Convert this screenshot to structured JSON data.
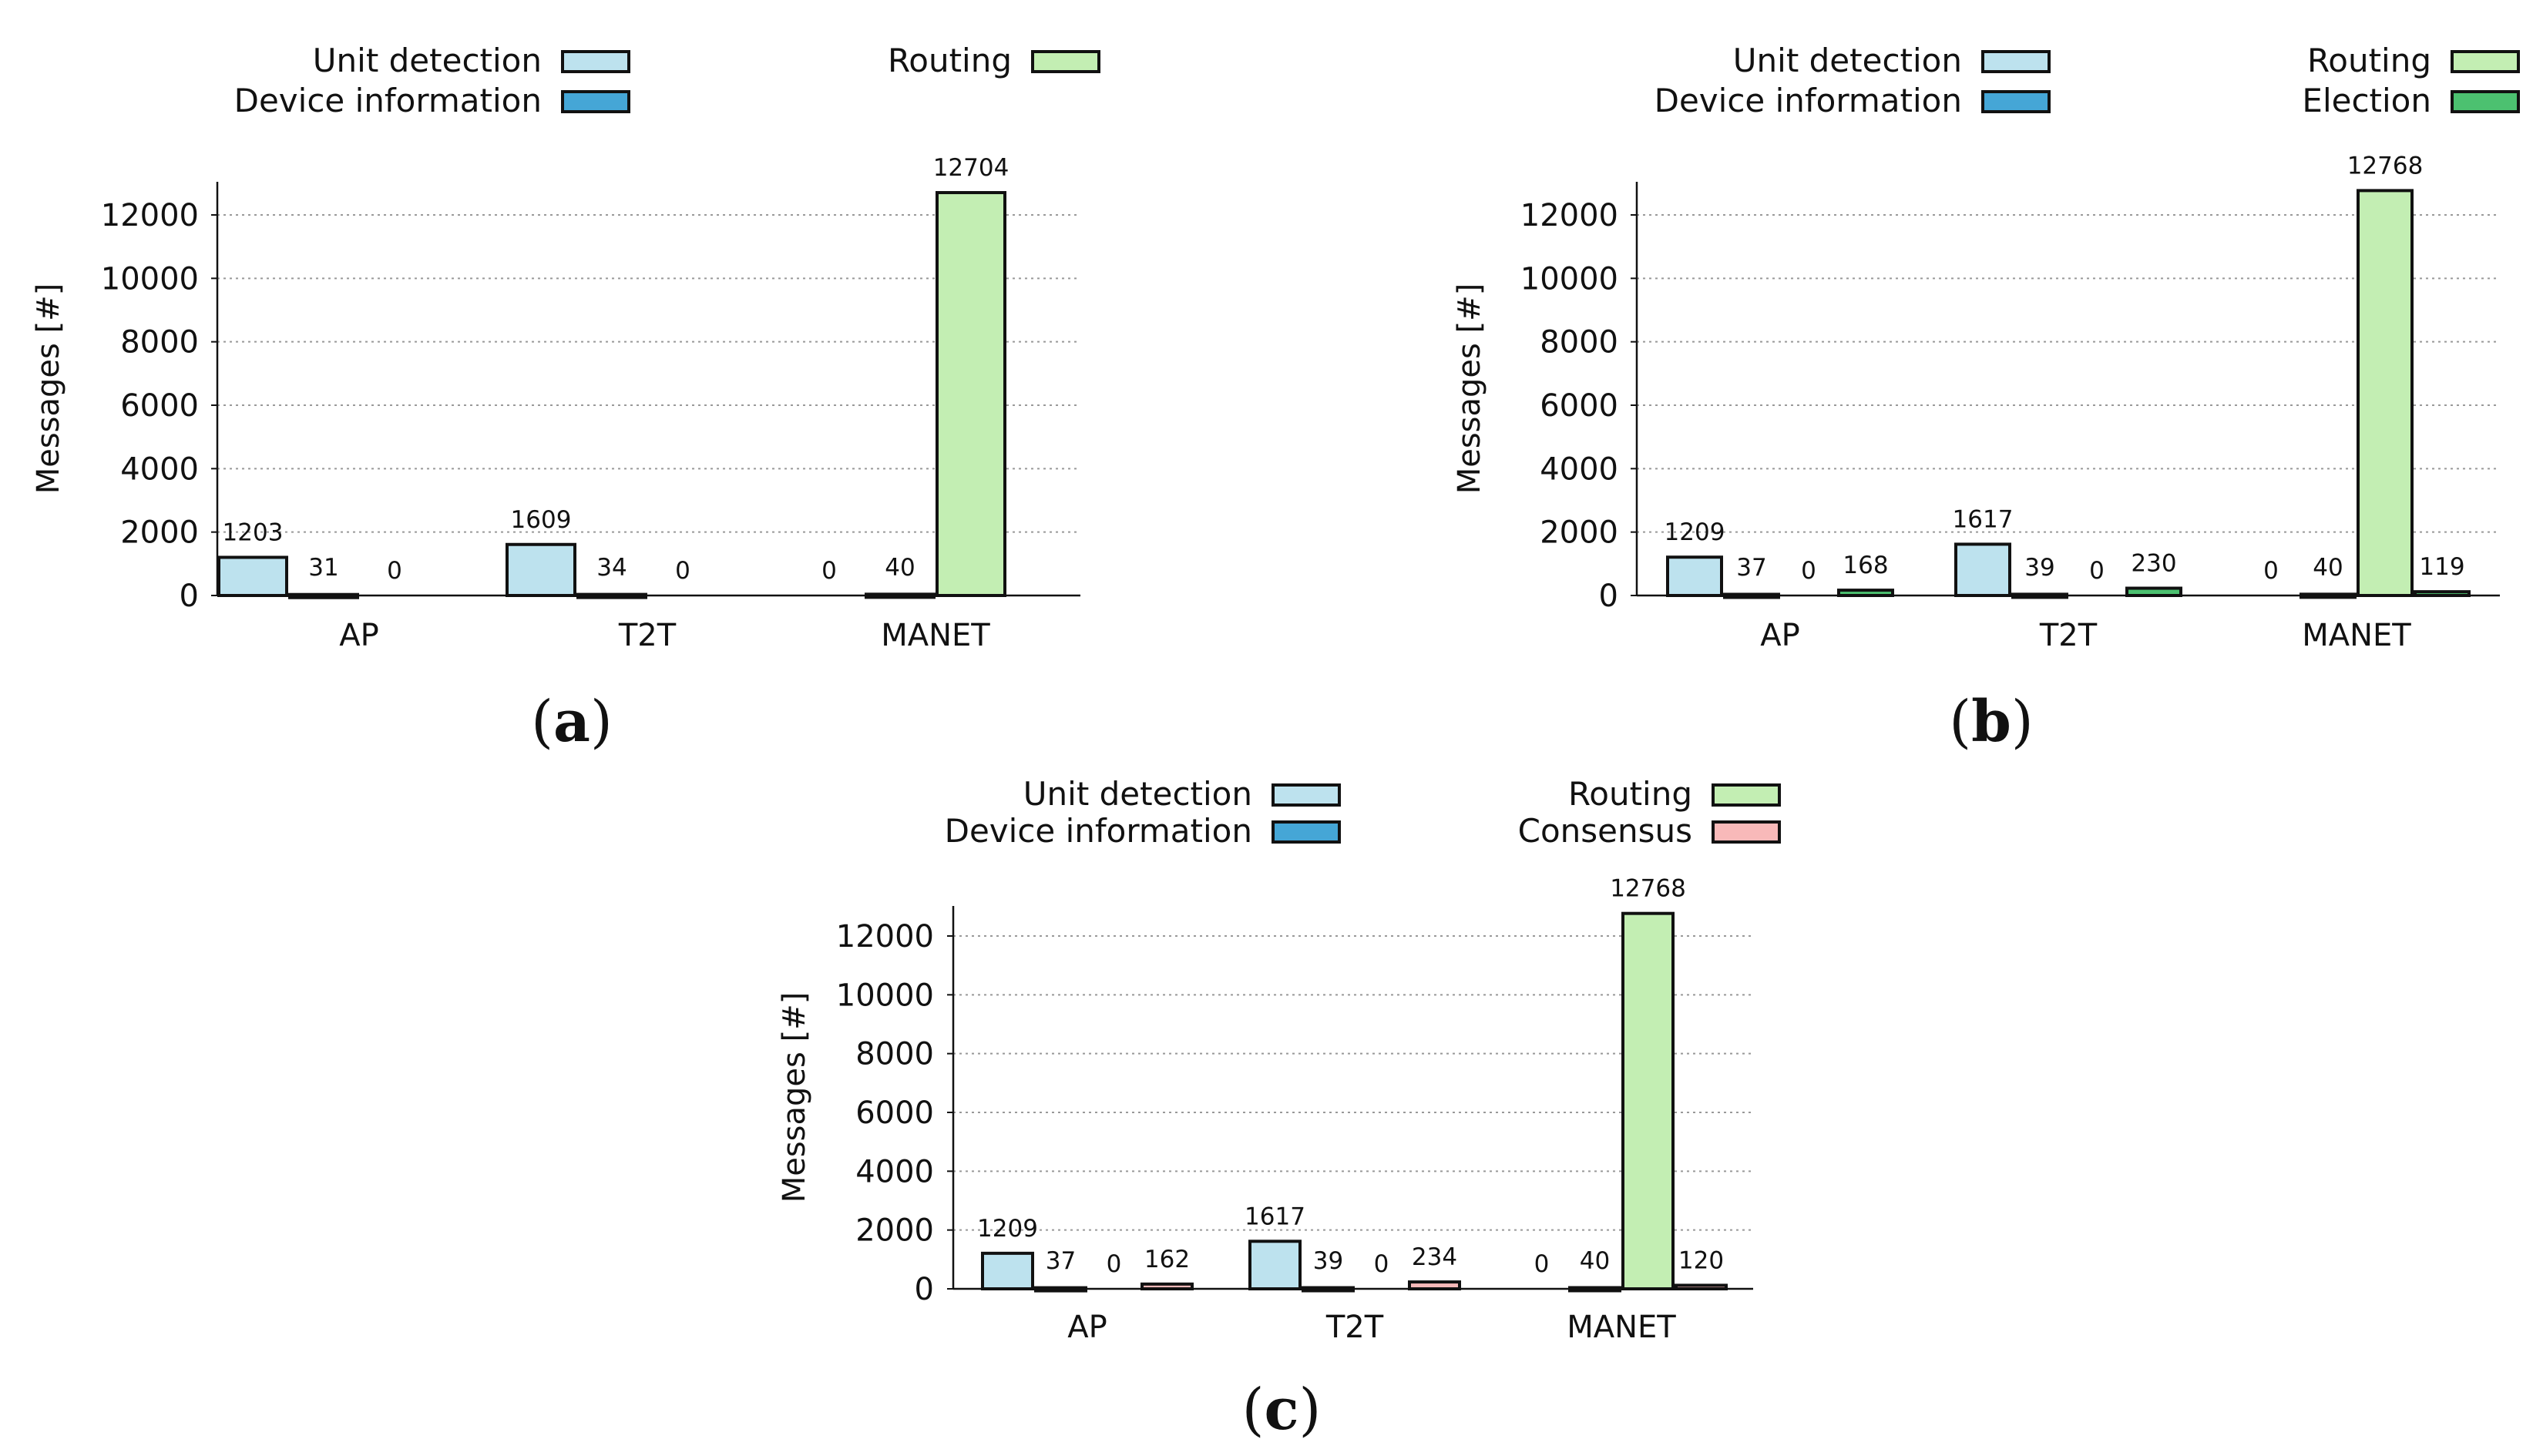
{
  "colors": {
    "Unit detection": "#bde2ee",
    "Device information": "#45a6d6",
    "Routing": "#c3eeb3",
    "Election": "#4cc170",
    "Consensus": "#f8b9b9",
    "grid": "#999999",
    "edge": "#111111"
  },
  "chart_data": [
    {
      "type": "bar",
      "panel": "a",
      "panel_open": "(",
      "panel_close": ")",
      "ylabel": "Messages [#]",
      "xlabel": "",
      "ylim": [
        0,
        13000
      ],
      "yticks": [
        0,
        2000,
        4000,
        6000,
        8000,
        10000,
        12000
      ],
      "grid": true,
      "categories": [
        "AP",
        "T2T",
        "MANET"
      ],
      "series": [
        {
          "name": "Unit detection",
          "values": [
            1203,
            1609,
            0
          ]
        },
        {
          "name": "Device information",
          "values": [
            31,
            34,
            40
          ]
        },
        {
          "name": "Routing",
          "values": [
            0,
            0,
            12704
          ]
        }
      ],
      "legend": [
        "Unit detection",
        "Device information",
        "Routing"
      ]
    },
    {
      "type": "bar",
      "panel": "b",
      "panel_open": "(",
      "panel_close": ")",
      "ylabel": "Messages [#]",
      "xlabel": "",
      "ylim": [
        0,
        13000
      ],
      "yticks": [
        0,
        2000,
        4000,
        6000,
        8000,
        10000,
        12000
      ],
      "grid": true,
      "categories": [
        "AP",
        "T2T",
        "MANET"
      ],
      "series": [
        {
          "name": "Unit detection",
          "values": [
            1209,
            1617,
            0
          ]
        },
        {
          "name": "Device information",
          "values": [
            37,
            39,
            40
          ]
        },
        {
          "name": "Routing",
          "values": [
            0,
            0,
            12768
          ]
        },
        {
          "name": "Election",
          "values": [
            168,
            230,
            119
          ]
        }
      ],
      "legend": [
        "Unit detection",
        "Device information",
        "Routing",
        "Election"
      ]
    },
    {
      "type": "bar",
      "panel": "c",
      "panel_open": "(",
      "panel_close": ")",
      "ylabel": "Messages [#]",
      "xlabel": "",
      "ylim": [
        0,
        13000
      ],
      "yticks": [
        0,
        2000,
        4000,
        6000,
        8000,
        10000,
        12000
      ],
      "grid": true,
      "categories": [
        "AP",
        "T2T",
        "MANET"
      ],
      "series": [
        {
          "name": "Unit detection",
          "values": [
            1209,
            1617,
            0
          ]
        },
        {
          "name": "Device information",
          "values": [
            37,
            39,
            40
          ]
        },
        {
          "name": "Routing",
          "values": [
            0,
            0,
            12768
          ]
        },
        {
          "name": "Consensus",
          "values": [
            162,
            234,
            120
          ]
        }
      ],
      "legend": [
        "Unit detection",
        "Device information",
        "Routing",
        "Consensus"
      ]
    }
  ]
}
